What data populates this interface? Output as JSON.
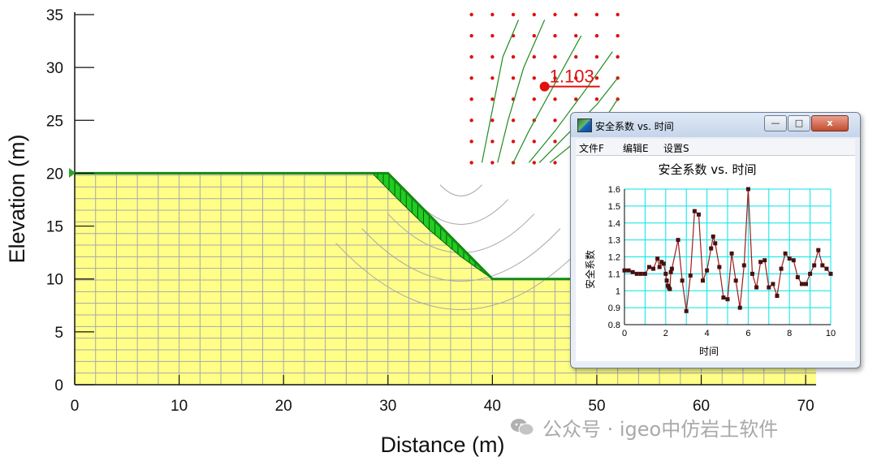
{
  "main_plot": {
    "xlabel": "Distance (m)",
    "ylabel": "Elevation (m)",
    "x_ticks": [
      "0",
      "10",
      "20",
      "30",
      "40",
      "50",
      "60",
      "70"
    ],
    "y_ticks": [
      "0",
      "5",
      "10",
      "15",
      "20",
      "25",
      "30",
      "35"
    ],
    "xlim": [
      0,
      71
    ],
    "ylim": [
      0,
      35
    ],
    "slope_profile": [
      [
        0,
        20
      ],
      [
        30,
        20
      ],
      [
        40,
        10
      ],
      [
        71,
        10
      ]
    ],
    "slip_surface_point": [
      28.5,
      20
    ],
    "critical_center": {
      "x": 45,
      "y": 28.2,
      "label": "1.103"
    },
    "grid_x_range": [
      38,
      52
    ],
    "grid_y_range": [
      21,
      35
    ],
    "colors": {
      "soil": "#ffff88",
      "slice_fill": "#22cc22",
      "profile": "#138a13",
      "mesh": "#a8a8a8",
      "grid_point": "#e01010",
      "contour": "#228b22",
      "critical": "#e01010"
    }
  },
  "popup": {
    "window_title": "安全系数 vs. 时间",
    "buttons": {
      "minimize": "—",
      "maximize": "□",
      "close": "x"
    },
    "menu": [
      "文件F",
      "编辑E",
      "设置S"
    ],
    "chart_data": {
      "type": "line",
      "title": "安全系数 vs. 时间",
      "xlabel": "时间",
      "ylabel": "安全系数",
      "xlim": [
        0,
        10
      ],
      "ylim": [
        0.8,
        1.6
      ],
      "x_ticks": [
        "0",
        "2",
        "4",
        "6",
        "8",
        "10"
      ],
      "y_ticks": [
        "0.8",
        "0.9",
        "1",
        "1.1",
        "1.2",
        "1.3",
        "1.4",
        "1.5",
        "1.6"
      ],
      "grid": true,
      "series": [
        {
          "x": [
            0,
            0.2,
            0.4,
            0.6,
            0.8,
            1.0,
            1.2,
            1.4,
            1.6,
            1.7,
            1.8,
            1.9,
            2.0,
            2.05,
            2.1,
            2.15,
            2.2,
            2.25,
            2.3,
            2.6,
            2.8,
            3.0,
            3.2,
            3.4,
            3.6,
            3.8,
            4.0,
            4.2,
            4.3,
            4.4,
            4.6,
            4.8,
            5.0,
            5.2,
            5.4,
            5.6,
            5.8,
            6.0,
            6.2,
            6.4,
            6.6,
            6.8,
            7.0,
            7.2,
            7.4,
            7.6,
            7.8,
            8.0,
            8.2,
            8.4,
            8.6,
            8.8,
            9.0,
            9.2,
            9.4,
            9.6,
            9.8,
            10.0
          ],
          "y": [
            1.12,
            1.12,
            1.11,
            1.1,
            1.1,
            1.1,
            1.14,
            1.13,
            1.19,
            1.14,
            1.17,
            1.16,
            1.1,
            1.06,
            1.03,
            1.02,
            1.01,
            1.11,
            1.13,
            1.3,
            1.06,
            0.88,
            1.09,
            1.47,
            1.45,
            1.06,
            1.12,
            1.25,
            1.32,
            1.28,
            1.14,
            0.96,
            0.95,
            1.22,
            1.06,
            0.9,
            1.15,
            1.6,
            1.1,
            1.02,
            1.17,
            1.18,
            1.02,
            1.04,
            0.97,
            1.13,
            1.22,
            1.19,
            1.18,
            1.08,
            1.04,
            1.04,
            1.1,
            1.15,
            1.24,
            1.15,
            1.13,
            1.1
          ]
        }
      ],
      "colors": {
        "line": "#9b1c1c",
        "marker": "#4a1010",
        "grid": "#00e5e5",
        "axis": "#000000"
      }
    }
  },
  "watermark": {
    "text": "公众号 · igeo中仿岩土软件",
    "icon": "wechat-icon"
  }
}
